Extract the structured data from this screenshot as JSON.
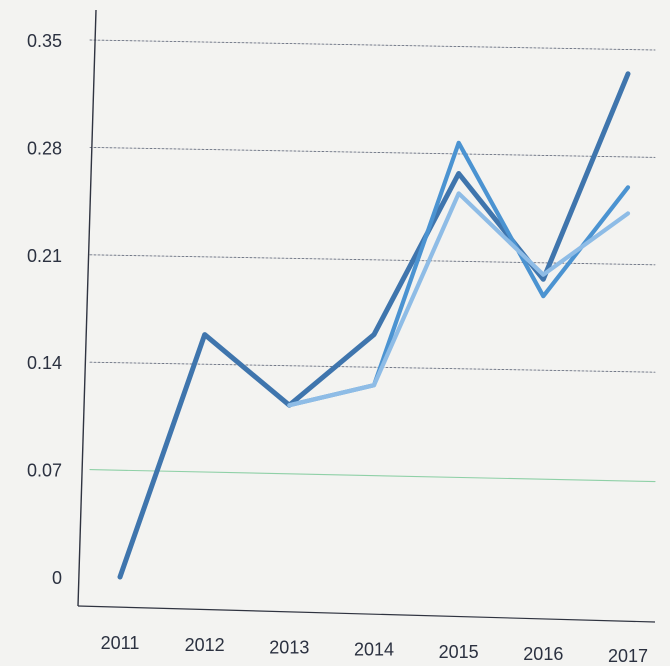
{
  "chart_data": {
    "type": "line",
    "x": [
      "2011",
      "2012",
      "2013",
      "2014",
      "2015",
      "2016",
      "2017"
    ],
    "y_ticks": [
      "0",
      "0.07",
      "0.14",
      "0.21",
      "0.28",
      "0.35"
    ],
    "ylim": [
      0,
      0.35
    ],
    "grid": true,
    "series": [
      {
        "color": "#3f75ad",
        "values": [
          0.0,
          0.158,
          0.112,
          0.158,
          0.263,
          0.194,
          0.328
        ]
      },
      {
        "color": "#4b93d1",
        "values": [
          null,
          null,
          0.112,
          0.125,
          0.283,
          0.183,
          0.254
        ]
      },
      {
        "color": "#8ebce6",
        "values": [
          null,
          null,
          0.112,
          0.125,
          0.25,
          0.197,
          0.237
        ]
      }
    ]
  }
}
